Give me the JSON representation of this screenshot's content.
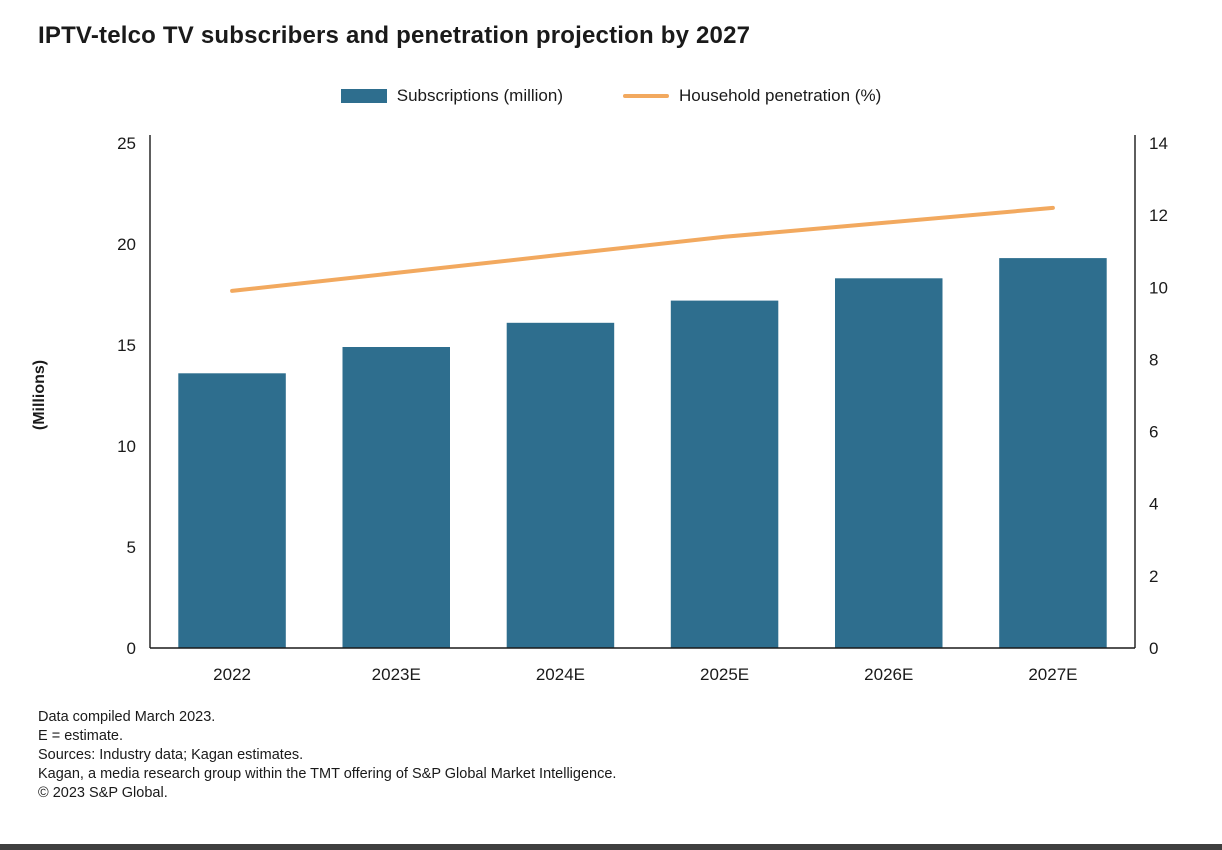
{
  "chart_data": {
    "type": "bar",
    "title": "IPTV-telco TV subscribers and penetration projection by 2027",
    "categories": [
      "2022",
      "2023E",
      "2024E",
      "2025E",
      "2026E",
      "2027E"
    ],
    "series": [
      {
        "name": "Subscriptions (million)",
        "type": "bar",
        "axis": "left",
        "color": "#2e6e8e",
        "values": [
          13.6,
          14.9,
          16.1,
          17.2,
          18.3,
          19.3
        ]
      },
      {
        "name": "Household penetration (%)",
        "type": "line",
        "axis": "right",
        "color": "#f2a95f",
        "values": [
          9.9,
          10.4,
          10.9,
          11.4,
          11.8,
          12.2
        ]
      }
    ],
    "ylabel_left": "(Millions)",
    "left_axis": {
      "min": 0,
      "max": 25,
      "ticks": [
        0,
        5,
        10,
        15,
        20,
        25
      ]
    },
    "right_axis": {
      "min": 0,
      "max": 14,
      "ticks": [
        0,
        2,
        4,
        6,
        8,
        10,
        12,
        14
      ]
    },
    "grid": false,
    "legend_position": "top"
  },
  "footer": {
    "lines": [
      "Data compiled March 2023.",
      "E = estimate.",
      "Sources: Industry data; Kagan estimates.",
      "Kagan, a media research group within the TMT offering of S&P Global Market Intelligence.",
      "© 2023 S&P Global."
    ]
  }
}
